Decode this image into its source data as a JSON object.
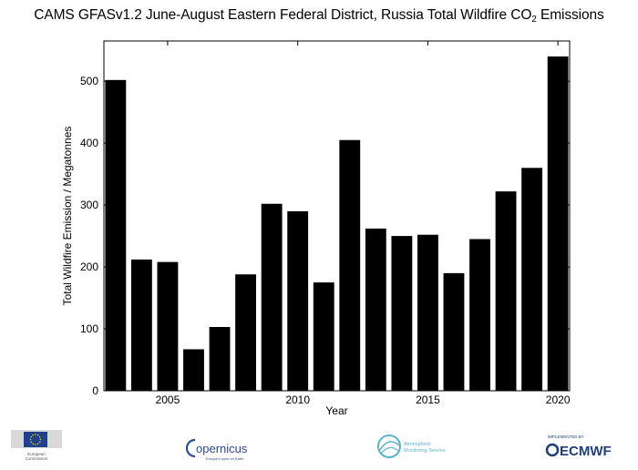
{
  "title": {
    "prefix": "CAMS GFASv1.2 June-August  Eastern Federal District, Russia Total Wildfire CO",
    "subscript": "2",
    "suffix": " Emissions"
  },
  "chart_data": {
    "type": "bar",
    "title": "CAMS GFASv1.2 June-August  Eastern Federal District, Russia Total Wildfire CO2 Emissions",
    "xlabel": "Year",
    "ylabel": "Total Wildfire Emission / Megatonnes",
    "categories": [
      2003,
      2004,
      2005,
      2006,
      2007,
      2008,
      2009,
      2010,
      2011,
      2012,
      2013,
      2014,
      2015,
      2016,
      2017,
      2018,
      2019,
      2020
    ],
    "values": [
      502,
      212,
      208,
      67,
      103,
      188,
      302,
      290,
      175,
      405,
      262,
      250,
      252,
      190,
      245,
      322,
      360,
      540
    ],
    "ylim": [
      0,
      565
    ],
    "xlim": [
      2002.55,
      2020.45
    ],
    "yticks": [
      0,
      100,
      200,
      300,
      400,
      500
    ],
    "xticks": [
      2005,
      2010,
      2015,
      2020
    ],
    "bar_color": "#000000",
    "grid": false
  },
  "logos": {
    "eu": {
      "caption_line1": "European",
      "caption_line2": "Commission",
      "color": "#1f3f8f",
      "star_color": "#f5d20a"
    },
    "copernicus": {
      "name": "opernicus",
      "tagline": "Europe's eyes on Earth",
      "color": "#2b4a8a"
    },
    "cams": {
      "line1": "Atmosphere",
      "line2": "Monitoring Service",
      "color": "#5bb3c9"
    },
    "ecmwf": {
      "topline": "IMPLEMENTED BY",
      "name": "ECMWF",
      "color": "#1d3f7a"
    }
  }
}
